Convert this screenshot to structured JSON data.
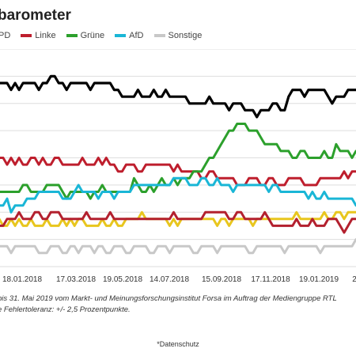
{
  "header": {
    "title": "barometer"
  },
  "legend": {
    "items": [
      {
        "label": "PD",
        "color": "#000000"
      },
      {
        "label": "Linke",
        "color": "#be1e2d"
      },
      {
        "label": "Grüne",
        "color": "#2ca02c"
      },
      {
        "label": "AfD",
        "color": "#1ab6d6"
      },
      {
        "label": "Sonstige",
        "color": "#c8c8c8"
      }
    ]
  },
  "footer": {
    "note1": "bis 31. Mai 2019 vom Markt- und Meinungsforschungsinstitut Forsa im Auftrag der Mediengruppe RTL",
    "note2": "e Fehlertoleranz: +/- 2,5 Prozentpunkte.",
    "privacy": "*Datenschutz"
  },
  "chart_data": {
    "type": "line",
    "title": "",
    "xlabel": "",
    "ylabel": "",
    "x_tick_labels": [
      "18.01.2018",
      "17.03.2018",
      "19.05.2018",
      "14.07.2018",
      "15.09.2018",
      "17.11.2018",
      "19.01.2019",
      "2"
    ],
    "ylim": [
      4,
      36
    ],
    "grid": true,
    "legend_position": "top-left",
    "series": [
      {
        "name": "PD",
        "color": "#000000",
        "values": [
          31,
          31,
          31,
          31,
          30,
          31,
          30,
          31,
          31,
          31,
          31,
          30,
          31,
          31,
          32,
          32,
          31,
          31,
          30,
          31,
          31,
          31,
          31,
          31,
          30,
          31,
          31,
          31,
          31,
          31,
          30,
          30,
          29,
          29,
          29,
          29,
          30,
          29,
          29,
          29,
          30,
          29,
          29,
          30,
          29,
          29,
          29,
          29,
          29,
          28,
          28,
          28,
          28,
          28,
          29,
          28,
          28,
          28,
          28,
          27,
          28,
          28,
          28,
          27,
          27,
          27,
          26,
          27,
          27,
          27,
          28,
          28,
          27,
          27,
          29,
          30,
          30,
          30,
          29,
          30,
          30,
          30,
          30,
          30,
          29,
          28,
          29,
          29,
          29,
          30,
          30,
          30
        ]
      },
      {
        "name": "Linke",
        "color": "#be1e2d",
        "values": [
          20,
          20,
          20,
          19,
          20,
          19,
          20,
          19,
          19,
          20,
          20,
          19,
          20,
          19,
          19,
          20,
          20,
          19,
          19,
          19,
          19,
          19,
          20,
          19,
          19,
          19,
          20,
          19,
          20,
          19,
          19,
          18,
          18,
          19,
          19,
          19,
          18,
          18,
          19,
          19,
          19,
          19,
          19,
          19,
          19,
          18,
          19,
          18,
          18,
          18,
          18,
          18,
          17,
          17,
          18,
          18,
          17,
          17,
          17,
          17,
          17,
          16,
          16,
          16,
          17,
          17,
          17,
          16,
          16,
          17,
          17,
          16,
          16,
          16,
          17,
          17,
          17,
          17,
          16,
          16,
          16,
          16,
          17,
          17,
          17,
          17,
          17,
          17,
          18,
          17,
          18,
          18
        ]
      },
      {
        "name": "Grüne",
        "color": "#2ca02c",
        "values": [
          15,
          15,
          15,
          15,
          15,
          15,
          15,
          16,
          16,
          15,
          15,
          15,
          15,
          16,
          16,
          16,
          16,
          15,
          14,
          15,
          15,
          15,
          15,
          15,
          14,
          15,
          15,
          16,
          15,
          15,
          15,
          15,
          15,
          15,
          15,
          17,
          16,
          15,
          15,
          16,
          15,
          16,
          17,
          16,
          16,
          17,
          16,
          17,
          17,
          17,
          18,
          18,
          18,
          19,
          20,
          20,
          21,
          22,
          23,
          24,
          24,
          25,
          25,
          25,
          24,
          24,
          24,
          23,
          22,
          22,
          22,
          22,
          21,
          21,
          21,
          20,
          20,
          21,
          21,
          20,
          20,
          20,
          20,
          21,
          20,
          20,
          22,
          21,
          21,
          21,
          20,
          21
        ]
      },
      {
        "name": "AfD",
        "color": "#1ab6d6",
        "values": [
          13,
          13,
          13,
          14,
          12,
          13,
          13,
          13,
          14,
          14,
          14,
          15,
          15,
          15,
          15,
          15,
          15,
          14,
          14,
          14,
          15,
          16,
          15,
          15,
          15,
          15,
          14,
          15,
          15,
          15,
          14,
          15,
          15,
          15,
          15,
          16,
          16,
          16,
          16,
          16,
          16,
          16,
          16,
          16,
          16,
          17,
          17,
          17,
          17,
          16,
          16,
          16,
          17,
          17,
          16,
          16,
          17,
          16,
          16,
          16,
          15,
          16,
          16,
          16,
          16,
          16,
          16,
          16,
          16,
          15,
          16,
          16,
          15,
          15,
          15,
          15,
          15,
          15,
          15,
          14,
          15,
          14,
          14,
          15,
          14,
          14,
          14,
          14,
          14,
          14,
          14,
          13
        ]
      },
      {
        "name": "",
        "color": "#e8c61e",
        "values": [
          10,
          11,
          10,
          10,
          11,
          10,
          11,
          10,
          10,
          11,
          10,
          10,
          10,
          11,
          10,
          10,
          10,
          11,
          10,
          11,
          10,
          11,
          11,
          10,
          10,
          10,
          10,
          11,
          10,
          10,
          11,
          10,
          10,
          11,
          11,
          11,
          11,
          12,
          11,
          11,
          11,
          11,
          11,
          11,
          10,
          11,
          10,
          11,
          11,
          11,
          11,
          11,
          11,
          11,
          11,
          11,
          10,
          11,
          11,
          10,
          11,
          11,
          11,
          11,
          11,
          10,
          11,
          11,
          11,
          11,
          11,
          11,
          11,
          11,
          11,
          11,
          12,
          11,
          11,
          11,
          11,
          11,
          11,
          12,
          11,
          11,
          12,
          12,
          11,
          12,
          12,
          12
        ]
      },
      {
        "name": "",
        "color": "#b3202e",
        "values": [
          10,
          10,
          10,
          11,
          11,
          11,
          12,
          11,
          11,
          11,
          12,
          12,
          11,
          11,
          12,
          12,
          12,
          11,
          11,
          11,
          11,
          11,
          11,
          12,
          11,
          11,
          11,
          11,
          11,
          12,
          11,
          11,
          11,
          11,
          11,
          11,
          11,
          11,
          11,
          11,
          11,
          11,
          11,
          11,
          11,
          12,
          11,
          11,
          11,
          11,
          11,
          11,
          11,
          12,
          12,
          12,
          12,
          12,
          12,
          11,
          11,
          12,
          12,
          11,
          11,
          11,
          11,
          11,
          12,
          11,
          10,
          10,
          10,
          10,
          10,
          10,
          11,
          10,
          10,
          10,
          11,
          10,
          10,
          10,
          11,
          11,
          11,
          10,
          9,
          10,
          11,
          11
        ]
      },
      {
        "name": "Sonstige",
        "color": "#c8c8c8",
        "values": [
          7,
          7,
          7,
          7,
          6,
          7,
          7,
          7,
          7,
          7,
          7,
          6,
          6,
          6,
          7,
          7,
          7,
          6,
          6,
          7,
          7,
          6,
          7,
          7,
          7,
          6,
          7,
          7,
          6,
          6,
          7,
          7,
          7,
          6,
          6,
          7,
          7,
          7,
          7,
          6,
          6,
          7,
          7,
          7,
          6,
          7,
          7,
          7,
          7,
          7,
          6,
          6,
          7,
          7,
          7,
          7,
          6,
          7,
          7,
          7,
          7,
          7,
          7,
          7,
          6,
          6,
          7,
          7,
          7,
          7,
          7,
          7,
          7,
          6,
          7,
          7,
          7,
          7,
          7,
          7,
          7,
          7,
          6,
          7,
          7,
          7,
          7,
          7,
          7,
          7,
          7,
          8
        ]
      }
    ]
  }
}
